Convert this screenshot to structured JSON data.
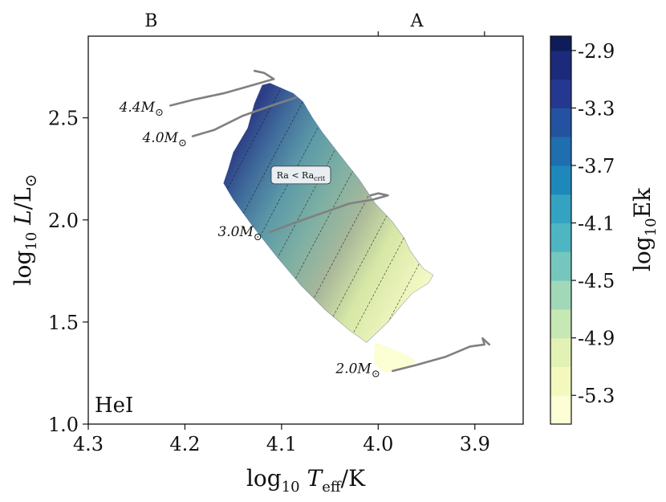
{
  "chart_data": {
    "type": "heatmap",
    "panel_label": "HeI",
    "xlabel": {
      "base": "log",
      "sub": "10",
      "var": "T",
      "varsub": "eff",
      "unit": "/K"
    },
    "ylabel": {
      "base": "log",
      "sub": "10",
      "var": "L",
      "unit": "/L",
      "sun": "⊙"
    },
    "xlim": [
      4.3,
      3.85
    ],
    "ylim": [
      1.0,
      2.9
    ],
    "xticks": [
      4.3,
      4.2,
      4.1,
      4.0,
      3.9
    ],
    "xtick_labels": [
      "4.3",
      "4.2",
      "4.1",
      "4.0",
      "3.9"
    ],
    "yticks": [
      1.0,
      1.5,
      2.0,
      2.5
    ],
    "ytick_labels": [
      "1.0",
      "1.5",
      "2.0",
      "2.5"
    ],
    "spectral_classes": [
      {
        "label": "B",
        "x": 4.235
      },
      {
        "label": "A",
        "x": 3.96
      }
    ],
    "spectral_boundaries": [
      4.0,
      3.89
    ],
    "colorbar": {
      "label_base": "log",
      "label_sub": "10",
      "label_var": "Ek",
      "min": -5.5,
      "max": -2.8,
      "ticks": [
        -2.9,
        -3.3,
        -3.7,
        -4.1,
        -4.5,
        -4.9,
        -5.3
      ],
      "tick_labels": [
        "-2.9",
        "-3.3",
        "-3.7",
        "-4.1",
        "-4.5",
        "-4.9",
        "-5.3"
      ],
      "levels": [
        -5.5,
        -5.3,
        -5.1,
        -4.9,
        -4.7,
        -4.5,
        -4.3,
        -4.1,
        -3.9,
        -3.7,
        -3.5,
        -3.3,
        -3.1,
        -2.9,
        -2.8
      ],
      "colors": [
        "#fcfed3",
        "#f3f9bc",
        "#e2f2b4",
        "#c5e8b4",
        "#a0d8b8",
        "#75c7bd",
        "#4eb6c3",
        "#34a3c1",
        "#1e88bb",
        "#1f6eaf",
        "#2353a0",
        "#25388f",
        "#1b2a7a",
        "#0e1c5a"
      ]
    },
    "region": {
      "polygon": [
        [
          4.112,
          2.67
        ],
        [
          4.088,
          2.62
        ],
        [
          4.078,
          2.58
        ],
        [
          4.068,
          2.5
        ],
        [
          4.058,
          2.43
        ],
        [
          4.04,
          2.32
        ],
        [
          4.02,
          2.2
        ],
        [
          4.003,
          2.08
        ],
        [
          3.985,
          1.99
        ],
        [
          3.973,
          1.91
        ],
        [
          3.967,
          1.85
        ],
        [
          3.958,
          1.79
        ],
        [
          3.953,
          1.76
        ],
        [
          3.943,
          1.73
        ],
        [
          3.948,
          1.69
        ],
        [
          3.965,
          1.64
        ],
        [
          3.978,
          1.57
        ],
        [
          3.99,
          1.5
        ],
        [
          4.003,
          1.44
        ],
        [
          4.012,
          1.4
        ],
        [
          4.03,
          1.46
        ],
        [
          4.055,
          1.56
        ],
        [
          4.08,
          1.68
        ],
        [
          4.105,
          1.82
        ],
        [
          4.13,
          1.97
        ],
        [
          4.15,
          2.1
        ],
        [
          4.16,
          2.18
        ],
        [
          4.155,
          2.25
        ],
        [
          4.15,
          2.33
        ],
        [
          4.135,
          2.45
        ],
        [
          4.128,
          2.57
        ],
        [
          4.12,
          2.66
        ]
      ],
      "value_endpoints": {
        "upper_left": [
          4.16,
          2.25,
          -3.6
        ],
        "lower_right": [
          3.95,
          1.72,
          -5.4
        ]
      },
      "contour_levels": [
        -5.3,
        -5.1,
        -4.9,
        -4.7,
        -4.5,
        -4.3,
        -4.1,
        -3.9,
        -3.7
      ]
    },
    "lower_patch": {
      "polygon": [
        [
          4.003,
          1.4
        ],
        [
          3.975,
          1.35
        ],
        [
          3.96,
          1.31
        ],
        [
          3.972,
          1.27
        ],
        [
          3.992,
          1.25
        ],
        [
          4.005,
          1.3
        ]
      ]
    },
    "tracks": [
      {
        "label": "4.4M",
        "sym": "⊙",
        "label_at": [
          4.222,
          2.55
        ],
        "points": [
          [
            4.215,
            2.56
          ],
          [
            4.19,
            2.59
          ],
          [
            4.16,
            2.62
          ],
          [
            4.13,
            2.66
          ],
          [
            4.108,
            2.69
          ],
          [
            4.118,
            2.72
          ],
          [
            4.128,
            2.73
          ]
        ]
      },
      {
        "label": "4.0M",
        "sym": "⊙",
        "label_at": [
          4.198,
          2.4
        ],
        "points": [
          [
            4.192,
            2.41
          ],
          [
            4.17,
            2.44
          ],
          [
            4.14,
            2.51
          ],
          [
            4.11,
            2.56
          ],
          [
            4.085,
            2.6
          ]
        ]
      },
      {
        "label": "3.0M",
        "sym": "⊙",
        "label_at": [
          4.12,
          1.94
        ],
        "points": [
          [
            4.112,
            1.94
          ],
          [
            4.09,
            1.98
          ],
          [
            4.06,
            2.03
          ],
          [
            4.03,
            2.08
          ],
          [
            4.005,
            2.1
          ],
          [
            3.99,
            2.12
          ],
          [
            4.0,
            2.13
          ],
          [
            4.008,
            2.12
          ]
        ]
      },
      {
        "label": "2.0M",
        "sym": "⊙",
        "label_at": [
          3.998,
          1.27
        ],
        "points": [
          [
            3.985,
            1.26
          ],
          [
            3.96,
            1.29
          ],
          [
            3.93,
            1.33
          ],
          [
            3.905,
            1.38
          ],
          [
            3.89,
            1.39
          ],
          [
            3.892,
            1.42
          ],
          [
            3.885,
            1.39
          ]
        ]
      }
    ],
    "annotation": {
      "text": "Ra < Ra",
      "sub": "crit",
      "at": [
        4.08,
        2.22
      ]
    }
  }
}
